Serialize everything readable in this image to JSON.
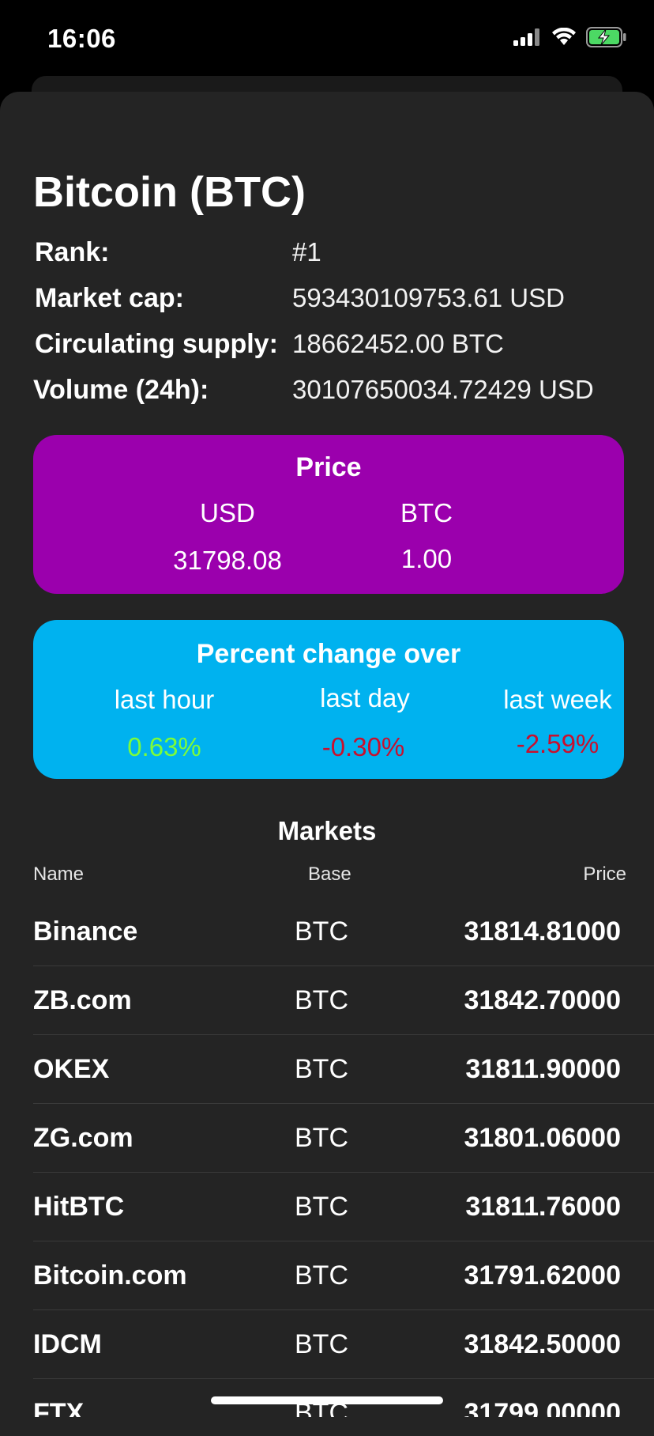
{
  "status_bar": {
    "time": "16:06"
  },
  "coin": {
    "title": "Bitcoin (BTC)"
  },
  "info": [
    {
      "label": "Rank:",
      "value": "#1"
    },
    {
      "label": "Market cap:",
      "value": "593430109753.61 USD"
    },
    {
      "label": "Circulating supply:",
      "value": "18662452.00 BTC"
    },
    {
      "label": "Volume (24h):",
      "value": "30107650034.72429 USD"
    }
  ],
  "price_card": {
    "title": "Price",
    "usd_label": "USD",
    "btc_label": "BTC",
    "usd_value": "31798.08",
    "btc_value": "1.00",
    "color": "#9b00ad"
  },
  "change_card": {
    "title": "Percent change over",
    "hour_label": "last hour",
    "day_label": "last day",
    "week_label": "last week",
    "hour_value": "0.63%",
    "day_value": "-0.30%",
    "week_value": "-2.59%",
    "color": "#00b2ef",
    "positive_color": "#7CFC3A",
    "negative_color": "#c8102e"
  },
  "markets": {
    "title": "Markets",
    "headers": {
      "name": "Name",
      "base": "Base",
      "price": "Price"
    },
    "rows": [
      {
        "name": "Binance",
        "base": "BTC",
        "price": "31814.81000"
      },
      {
        "name": "ZB.com",
        "base": "BTC",
        "price": "31842.70000"
      },
      {
        "name": "OKEX",
        "base": "BTC",
        "price": "31811.90000"
      },
      {
        "name": "ZG.com",
        "base": "BTC",
        "price": "31801.06000"
      },
      {
        "name": "HitBTC",
        "base": "BTC",
        "price": "31811.76000"
      },
      {
        "name": "Bitcoin.com",
        "base": "BTC",
        "price": "31791.62000"
      },
      {
        "name": "IDCM",
        "base": "BTC",
        "price": "31842.50000"
      },
      {
        "name": "FTX",
        "base": "BTC",
        "price": "31799.00000"
      }
    ]
  }
}
